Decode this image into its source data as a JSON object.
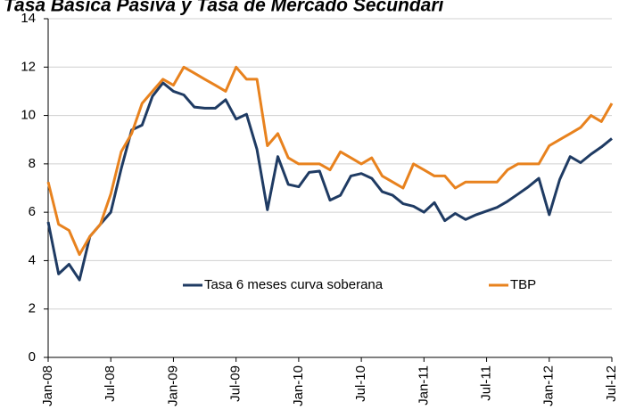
{
  "chart_data": {
    "type": "line",
    "title": "Tasa Básica Pasiva y Tasa de Mercado Secundari",
    "categories": [
      "Jan-08",
      null,
      null,
      null,
      null,
      null,
      "Jul-08",
      null,
      null,
      null,
      null,
      null,
      "Jan-09",
      null,
      null,
      null,
      null,
      null,
      "Jul-09",
      null,
      null,
      null,
      null,
      null,
      "Jan-10",
      null,
      null,
      null,
      null,
      null,
      "Jul-10",
      null,
      null,
      null,
      null,
      null,
      "Jan-11",
      null,
      null,
      null,
      null,
      null,
      "Jul-11",
      null,
      null,
      null,
      null,
      null,
      "Jan-12",
      null,
      null,
      null,
      null,
      null,
      "Jul-12"
    ],
    "series": [
      {
        "name": "Tasa 6 meses curva soberana",
        "color": "#1f3b63",
        "values": [
          5.6,
          3.45,
          3.85,
          3.2,
          5.0,
          5.5,
          6.0,
          7.8,
          9.4,
          9.6,
          10.8,
          11.35,
          11.0,
          10.85,
          10.35,
          10.3,
          10.3,
          10.65,
          9.85,
          10.05,
          8.6,
          6.1,
          8.3,
          7.15,
          7.05,
          7.65,
          7.7,
          6.5,
          6.7,
          7.5,
          7.6,
          7.4,
          6.85,
          6.7,
          6.35,
          6.25,
          6.0,
          6.4,
          5.65,
          5.95,
          5.7,
          5.9,
          6.05,
          6.2,
          6.45,
          6.75,
          7.05,
          7.4,
          5.9,
          7.35,
          8.3,
          8.05,
          8.4,
          8.7,
          9.05
        ]
      },
      {
        "name": "TBP",
        "color": "#e8821e",
        "values": [
          7.25,
          5.5,
          5.25,
          4.25,
          5.0,
          5.5,
          6.75,
          8.5,
          9.25,
          10.5,
          11.0,
          11.5,
          11.25,
          12.0,
          11.75,
          11.5,
          11.25,
          11.0,
          12.0,
          11.5,
          11.5,
          8.75,
          9.25,
          8.25,
          8.0,
          8.0,
          8.0,
          7.75,
          8.5,
          8.25,
          8.0,
          8.25,
          7.5,
          7.25,
          7.0,
          8.0,
          7.75,
          7.5,
          7.5,
          7.0,
          7.25,
          7.25,
          7.25,
          7.25,
          7.75,
          8.0,
          8.0,
          8.0,
          8.75,
          9.0,
          9.25,
          9.5,
          10.0,
          9.75,
          10.5
        ]
      }
    ],
    "ylim": [
      0,
      14
    ],
    "yticks": [
      0,
      2,
      4,
      6,
      8,
      10,
      12,
      14
    ],
    "grid": true
  }
}
